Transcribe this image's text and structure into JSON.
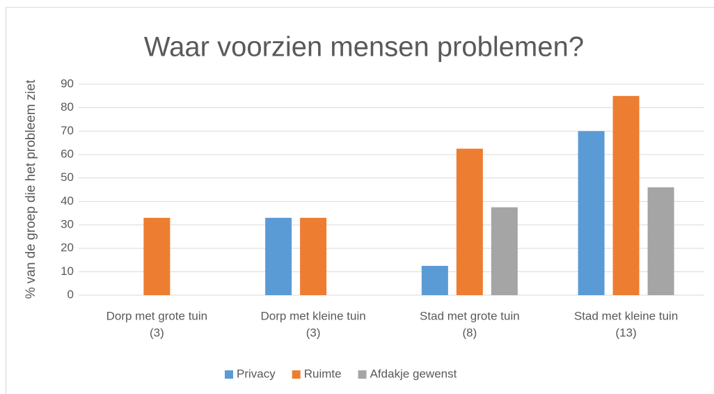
{
  "chart_data": {
    "type": "bar",
    "title": "Waar voorzien mensen problemen?",
    "ylabel": "% van de groep die het probleem ziet",
    "categories": [
      [
        "Dorp met grote tuin",
        "(3)"
      ],
      [
        "Dorp met kleine tuin",
        "(3)"
      ],
      [
        "Stad met grote tuin",
        "(8)"
      ],
      [
        "Stad met kleine tuin",
        "(13)"
      ]
    ],
    "series": [
      {
        "name": "Privacy",
        "color": "#5b9bd5",
        "values": [
          0,
          33,
          12.5,
          70
        ]
      },
      {
        "name": "Ruimte",
        "color": "#ed7d31",
        "values": [
          33,
          33,
          62.5,
          85
        ]
      },
      {
        "name": "Afdakje gewenst",
        "color": "#a5a5a5",
        "values": [
          0,
          0,
          37.5,
          46
        ]
      }
    ],
    "ylim": [
      0,
      90
    ],
    "yticks": [
      0,
      10,
      20,
      30,
      40,
      50,
      60,
      70,
      80,
      90
    ],
    "grid": true,
    "legend": "bottom"
  }
}
